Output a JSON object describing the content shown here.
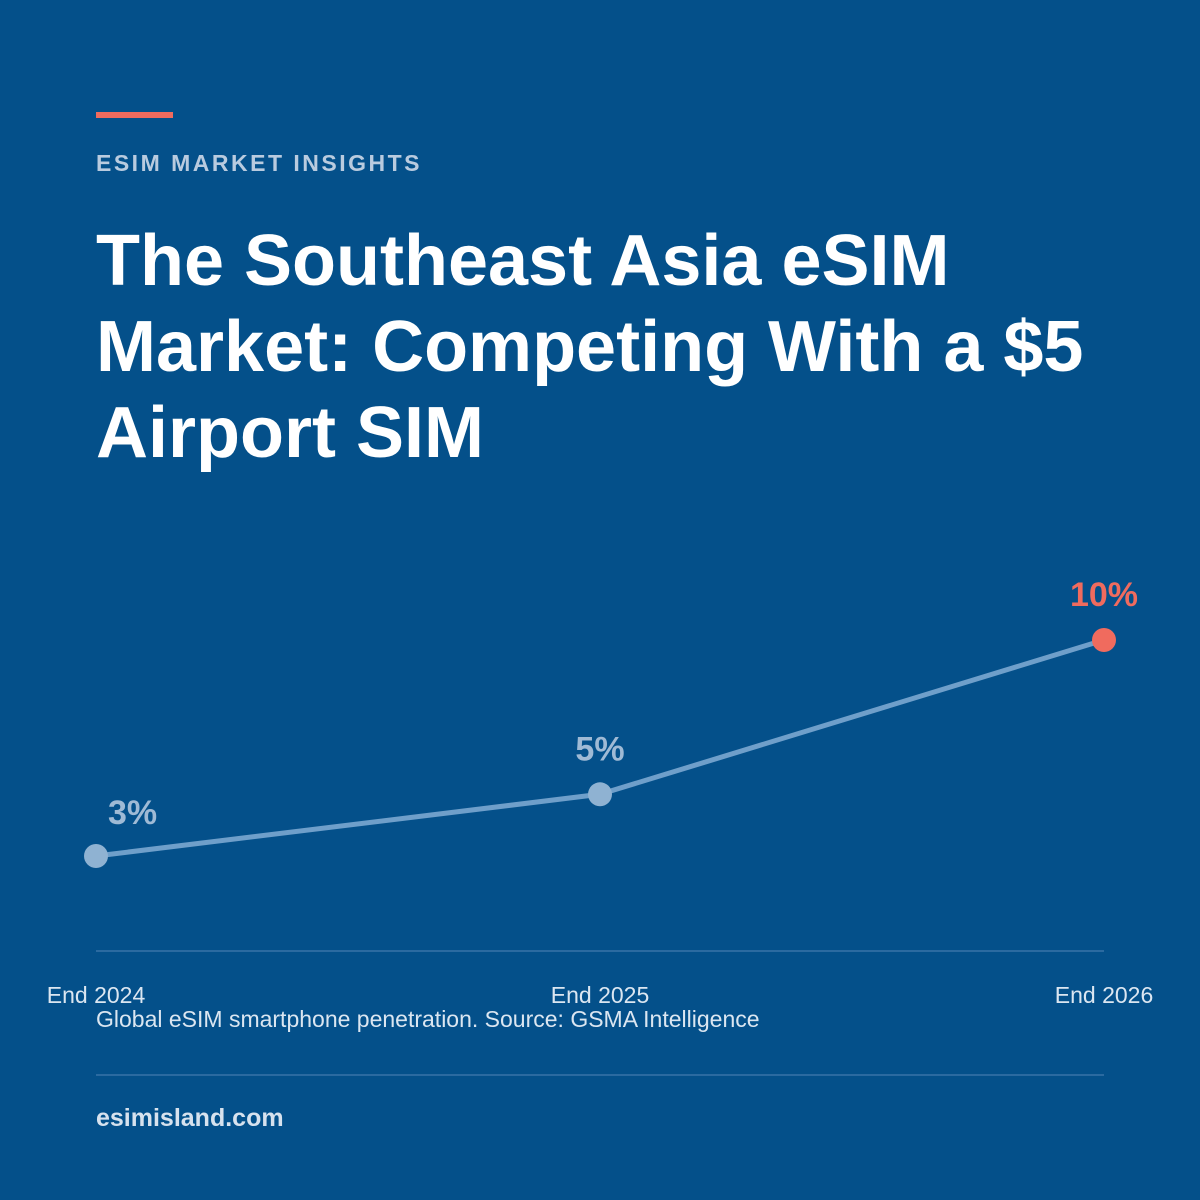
{
  "eyebrow": "ESIM MARKET INSIGHTS",
  "title": "The Southeast Asia eSIM Market: Competing With a $5 Airport SIM",
  "caption": "Global eSIM smartphone penetration. Source: GSMA Intelligence",
  "site": "esimisland.com",
  "colors": {
    "background": "#04508a",
    "accent": "#f06b5e",
    "line": "#6f9fca",
    "point": "#8fb2d2",
    "muted_label": "#9fbad5"
  },
  "chart_data": {
    "type": "line",
    "title": "",
    "xlabel": "",
    "ylabel": "",
    "categories": [
      "End 2024",
      "End 2025",
      "End 2026"
    ],
    "values": [
      3,
      5,
      10
    ],
    "data_labels": [
      "3%",
      "5%",
      "10%"
    ],
    "highlight_index": 2,
    "ylim": [
      1,
      10
    ],
    "grid": false
  }
}
